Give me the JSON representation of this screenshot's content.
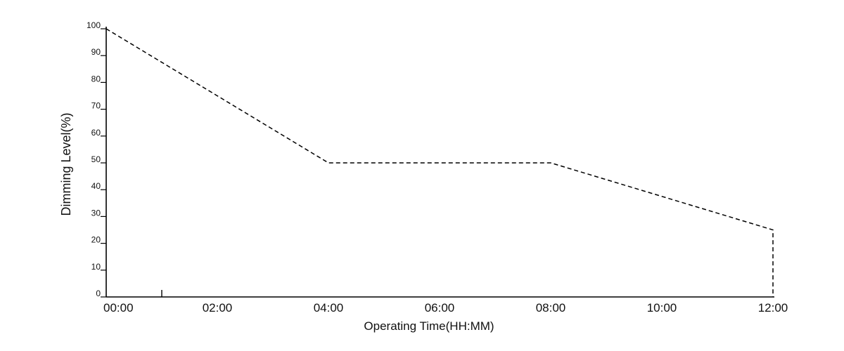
{
  "chart_data": {
    "type": "line",
    "title": "",
    "xlabel": "Operating Time(HH:MM)",
    "ylabel": "Dimming Level(%)",
    "x_tick_labels": [
      "00:00",
      "02:00",
      "04:00",
      "06:00",
      "08:00",
      "10:00",
      "12:00"
    ],
    "y_tick_labels": [
      "0",
      "10",
      "20",
      "30",
      "40",
      "50",
      "60",
      "70",
      "80",
      "90",
      "100"
    ],
    "xlim_hours": [
      0,
      12
    ],
    "ylim": [
      0,
      100
    ],
    "grid": false,
    "line_style": "dashed",
    "line_color": "#000000",
    "series": [
      {
        "x_hours": [
          0,
          4,
          8,
          12,
          12
        ],
        "y": [
          100,
          50,
          50,
          25,
          0
        ]
      }
    ]
  }
}
